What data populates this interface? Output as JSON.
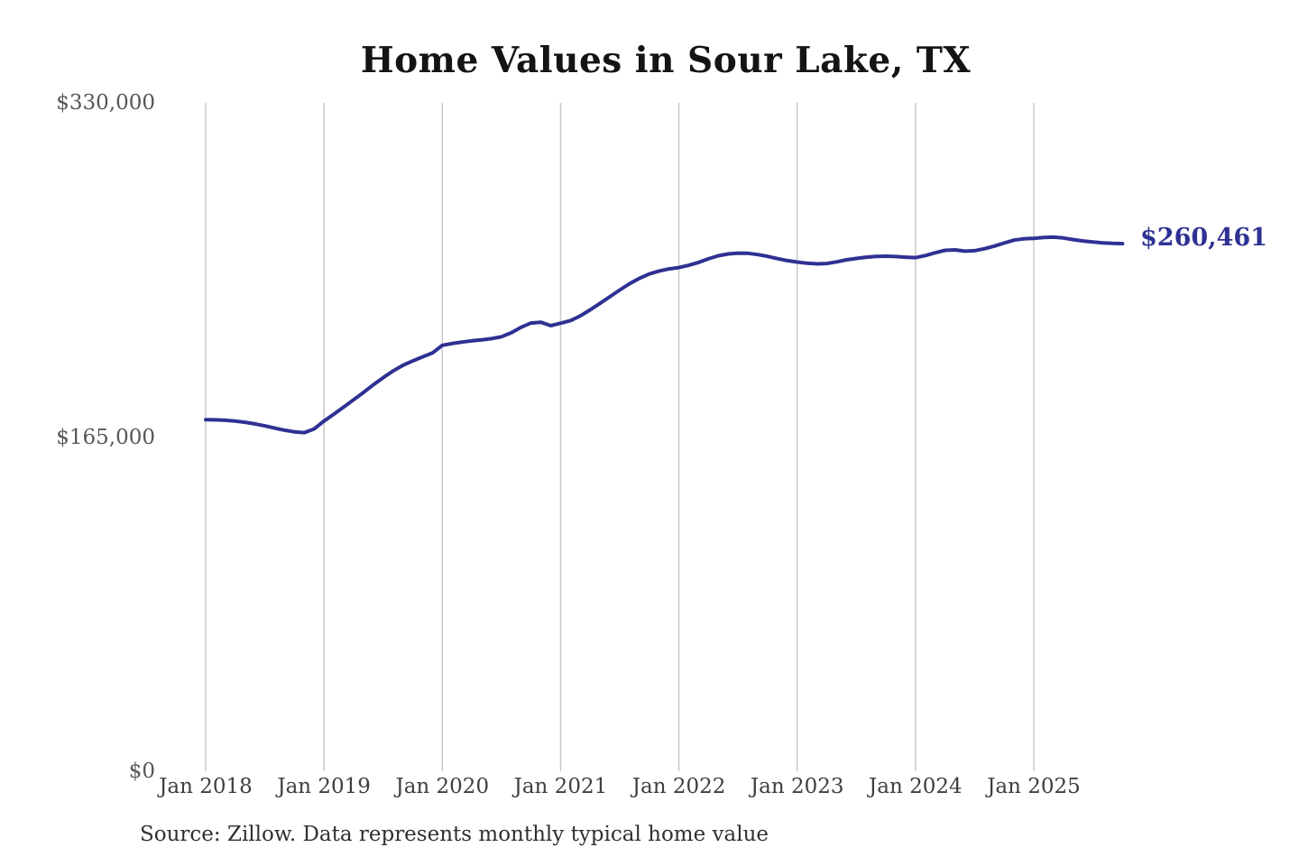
{
  "colors": {
    "line": "#2e3192",
    "end_label": "#2e3192",
    "gridline": "#c9c9c9",
    "title_text": "#141414",
    "axis_text": "#565656",
    "source_text": "#303030",
    "background": "#ffffff"
  },
  "footer": {
    "source_note": "Source: Zillow. Data represents monthly typical home value"
  },
  "chart_data": {
    "type": "line",
    "title": "Home Values in Sour Lake, TX",
    "xlabel": "",
    "ylabel": "",
    "ylim": [
      0,
      330000
    ],
    "grid": "vertical-only",
    "legend": "none",
    "end_label": "$260,461",
    "end_value": 260461,
    "y_ticks": [
      {
        "value": 0,
        "label": "$0"
      },
      {
        "value": 165000,
        "label": "$165,000"
      },
      {
        "value": 330000,
        "label": "$330,000"
      }
    ],
    "x_tick_labels": [
      "Jan 2018",
      "Jan 2019",
      "Jan 2020",
      "Jan 2021",
      "Jan 2022",
      "Jan 2023",
      "Jan 2024",
      "Jan 2025"
    ],
    "x_start": "2018-01",
    "x_interval": "month",
    "x_end": "2025-10",
    "series": [
      {
        "name": "Monthly typical home value",
        "color": "#2e3192",
        "values": [
          173600,
          173500,
          173300,
          172900,
          172300,
          171500,
          170500,
          169400,
          168400,
          167600,
          167200,
          169000,
          172900,
          176300,
          179800,
          183400,
          187000,
          190800,
          194300,
          197600,
          200400,
          202600,
          204600,
          206500,
          210300,
          211200,
          211900,
          212500,
          213000,
          213600,
          214500,
          216500,
          219200,
          221300,
          221700,
          220000,
          221200,
          222500,
          224800,
          227800,
          231000,
          234300,
          237600,
          240700,
          243400,
          245500,
          247000,
          248000,
          248700,
          249800,
          251200,
          253000,
          254500,
          255400,
          255800,
          255700,
          255100,
          254200,
          253100,
          252100,
          251400,
          250800,
          250500,
          250700,
          251500,
          252500,
          253200,
          253800,
          254200,
          254300,
          254100,
          253800,
          253600,
          254600,
          256000,
          257200,
          257400,
          256800,
          257000,
          258000,
          259300,
          260800,
          262200,
          262900,
          263100,
          263500,
          263700,
          263300,
          262500,
          261800,
          261300,
          260900,
          260600,
          260461
        ]
      }
    ]
  }
}
